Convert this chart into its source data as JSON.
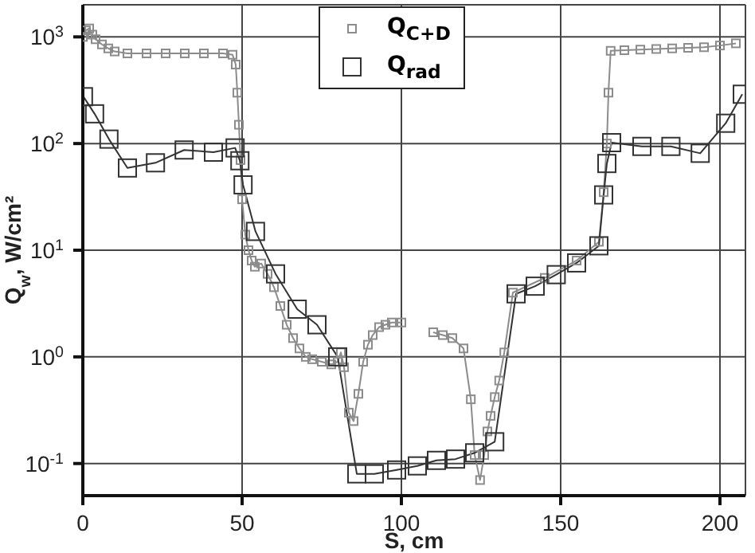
{
  "chart_data": {
    "type": "line",
    "xlabel": "S, cm",
    "ylabel": "Q$_{w}$, W/cm²",
    "log": "y",
    "xlim": [
      0,
      208
    ],
    "xticks": [
      0,
      50,
      100,
      150,
      200
    ],
    "ylim": [
      0.05,
      2000
    ],
    "yticks": [
      {
        "value": 0.1,
        "label": "10$^{-1}$"
      },
      {
        "value": 1,
        "label": "10$^{0}$"
      },
      {
        "value": 10,
        "label": "10$^{1}$"
      },
      {
        "value": 100,
        "label": "10$^{2}$"
      },
      {
        "value": 1000,
        "label": "10$^{3}$"
      }
    ],
    "grid": true,
    "legend": "top",
    "marker": "square",
    "line_style": "solid",
    "series": [
      {
        "name": "Q$_{C+D}$",
        "color": "#8c8c8c",
        "x": [
          0,
          1,
          2,
          3,
          4,
          6,
          8,
          10,
          14,
          20,
          26,
          32,
          38,
          44,
          47,
          48,
          48.5,
          49,
          49.5,
          50,
          51,
          52,
          53,
          54,
          56,
          58,
          60,
          62,
          64,
          66,
          68,
          70,
          72,
          75,
          78,
          80,
          81,
          82,
          83.5,
          85,
          86.5,
          88,
          89.5,
          91,
          93,
          95,
          97,
          100,
          105,
          110,
          113,
          116,
          119.5,
          121.8,
          123,
          124.7,
          126,
          127,
          128,
          129.3,
          130.7,
          132.3,
          135,
          145,
          155,
          162,
          163.5,
          164.5,
          165,
          165.7,
          170,
          175,
          180,
          185,
          190,
          195,
          200,
          205
        ],
        "values": [
          1000,
          1150,
          1200,
          1050,
          950,
          850,
          780,
          730,
          700,
          700,
          700,
          700,
          700,
          700,
          680,
          550,
          300,
          150,
          70,
          30,
          14,
          10,
          8,
          7,
          7.5,
          6,
          4.5,
          3,
          2,
          1.5,
          1.2,
          1.0,
          0.95,
          0.9,
          0.85,
          0.9,
          1.1,
          0.8,
          0.3,
          0.25,
          0.45,
          0.9,
          1.3,
          1.6,
          1.9,
          2.0,
          2.1,
          2.1,
          null,
          1.7,
          1.6,
          1.5,
          1.2,
          0.4,
          0.12,
          0.07,
          0.12,
          0.2,
          0.28,
          0.42,
          0.6,
          1.1,
          4.0,
          5.5,
          8,
          12,
          35,
          100,
          300,
          740,
          750,
          760,
          770,
          780,
          790,
          800,
          830,
          870
        ]
      },
      {
        "name": "Q$_{rad}$",
        "color": "#333333",
        "x": [
          0.2,
          3.7,
          8.2,
          14,
          22.8,
          31.8,
          41,
          47.8,
          49.3,
          50.3,
          54.2,
          60.5,
          67.3,
          73.5,
          80,
          86,
          91.5,
          98.5,
          105,
          111,
          117,
          123,
          129.3,
          136,
          142,
          148.6,
          155,
          162,
          163.5,
          164.5,
          166,
          175.5,
          184.6,
          193.8,
          201.8,
          207
        ],
        "values": [
          275,
          190,
          110,
          59,
          66,
          87,
          83,
          91,
          69,
          41,
          15,
          6,
          2.8,
          2.0,
          1.0,
          0.08,
          0.08,
          0.087,
          0.095,
          0.107,
          0.11,
          0.126,
          0.16,
          3.9,
          4.6,
          5.9,
          7.6,
          11,
          33,
          65,
          102,
          94,
          94,
          81,
          155,
          290
        ]
      }
    ]
  }
}
